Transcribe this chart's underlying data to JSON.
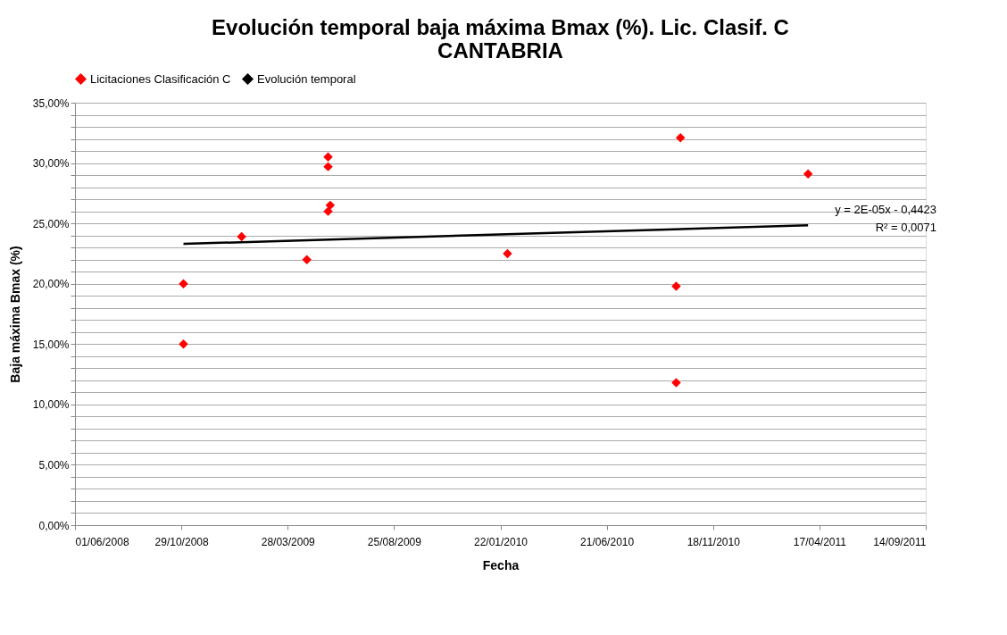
{
  "chart_data": {
    "type": "scatter",
    "title": [
      "Evolución temporal baja máxima Bmax (%). Lic. Clasif. C",
      "CANTABRIA"
    ],
    "xlabel": "Fecha",
    "ylabel": "Baja máxima Bmax (%)",
    "series": [
      {
        "name": "Licitaciones Clasificación C",
        "type": "scatter",
        "marker": "diamond",
        "color": "#ff0000",
        "x": [
          "2008-11-01",
          "2008-11-01",
          "2009-01-22",
          "2009-04-24",
          "2009-05-24",
          "2009-05-24",
          "2009-05-24",
          "2009-05-27",
          "2010-02-01",
          "2010-09-27",
          "2010-09-27",
          "2010-10-03",
          "2011-04-01"
        ],
        "values": [
          20.0,
          15.0,
          23.9,
          22.0,
          30.5,
          29.7,
          26.0,
          26.5,
          22.5,
          19.8,
          11.8,
          32.1,
          29.1
        ]
      },
      {
        "name": "Evolución temporal",
        "type": "line",
        "line_style": "solid",
        "color": "#000000",
        "x": [
          "2008-11-01",
          "2011-04-01"
        ],
        "values": [
          23.3,
          24.85
        ]
      }
    ],
    "annotations": [
      "y = 2E-05x - 0,4423",
      "R² = 0,0071"
    ],
    "xlim": [
      "2008-06-01",
      "2011-09-14"
    ],
    "xticks": [
      {
        "value": "2008-06-01",
        "label": "01/06/2008"
      },
      {
        "value": "2008-10-29",
        "label": "29/10/2008"
      },
      {
        "value": "2009-03-28",
        "label": "28/03/2009"
      },
      {
        "value": "2009-08-25",
        "label": "25/08/2009"
      },
      {
        "value": "2010-01-22",
        "label": "22/01/2010"
      },
      {
        "value": "2010-06-21",
        "label": "21/06/2010"
      },
      {
        "value": "2010-11-18",
        "label": "18/11/2010"
      },
      {
        "value": "2011-04-17",
        "label": "17/04/2011"
      },
      {
        "value": "2011-09-14",
        "label": "14/09/2011"
      }
    ],
    "ylim": [
      0,
      35
    ],
    "yticks": [
      {
        "value": 0,
        "label": "0,00%"
      },
      {
        "value": 1,
        "label": null
      },
      {
        "value": 2,
        "label": null
      },
      {
        "value": 3,
        "label": null
      },
      {
        "value": 4,
        "label": null
      },
      {
        "value": 5,
        "label": "5,00%"
      },
      {
        "value": 6,
        "label": null
      },
      {
        "value": 7,
        "label": null
      },
      {
        "value": 8,
        "label": null
      },
      {
        "value": 9,
        "label": null
      },
      {
        "value": 10,
        "label": "10,00%"
      },
      {
        "value": 11,
        "label": null
      },
      {
        "value": 12,
        "label": null
      },
      {
        "value": 13,
        "label": null
      },
      {
        "value": 14,
        "label": null
      },
      {
        "value": 15,
        "label": "15,00%"
      },
      {
        "value": 16,
        "label": null
      },
      {
        "value": 17,
        "label": null
      },
      {
        "value": 18,
        "label": null
      },
      {
        "value": 19,
        "label": null
      },
      {
        "value": 20,
        "label": "20,00%"
      },
      {
        "value": 21,
        "label": null
      },
      {
        "value": 22,
        "label": null
      },
      {
        "value": 23,
        "label": null
      },
      {
        "value": 24,
        "label": null
      },
      {
        "value": 25,
        "label": "25,00%"
      },
      {
        "value": 26,
        "label": null
      },
      {
        "value": 27,
        "label": null
      },
      {
        "value": 28,
        "label": null
      },
      {
        "value": 29,
        "label": null
      },
      {
        "value": 30,
        "label": "30,00%"
      },
      {
        "value": 31,
        "label": null
      },
      {
        "value": 32,
        "label": null
      },
      {
        "value": 33,
        "label": null
      },
      {
        "value": 34,
        "label": null
      },
      {
        "value": 35,
        "label": "35,00%"
      }
    ],
    "grid": "y",
    "legend": "top"
  }
}
